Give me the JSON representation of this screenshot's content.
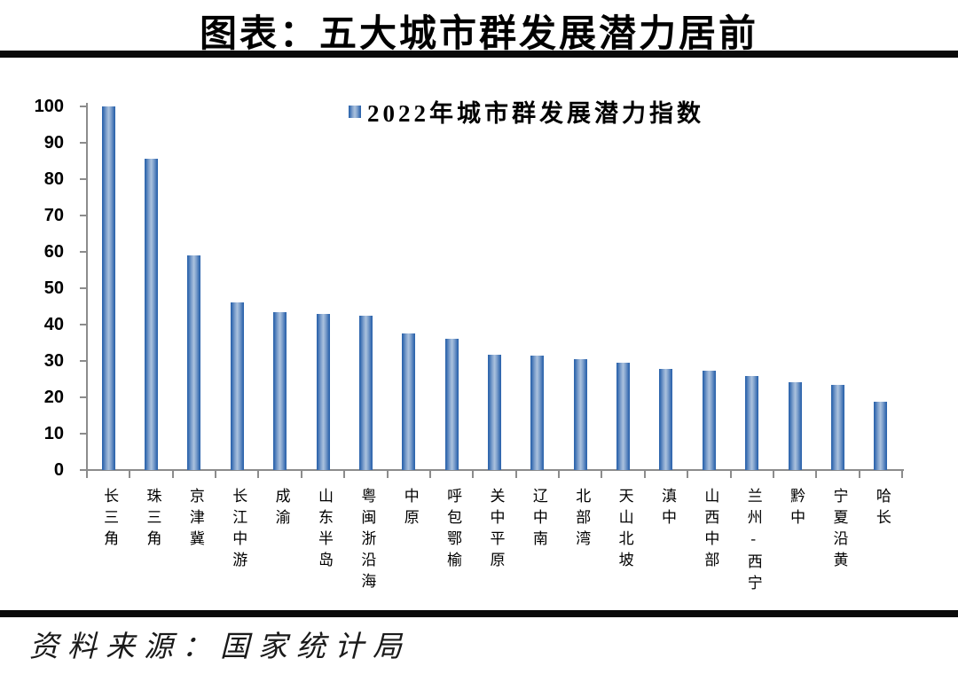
{
  "page": {
    "title": "图表：五大城市群发展潜力居前",
    "source": "资料来源：国家统计局"
  },
  "chart_data": {
    "type": "bar",
    "title": "图表：五大城市群发展潜力居前",
    "legend": [
      "2022年城市群发展潜力指数"
    ],
    "legend_position": "top-center",
    "categories": [
      "长三角",
      "珠三角",
      "京津冀",
      "长江中游",
      "成渝",
      "山东半岛",
      "粤闽浙沿海",
      "中原",
      "呼包鄂榆",
      "关中平原",
      "辽中南",
      "北部湾",
      "天山北坡",
      "滇中",
      "山西中部",
      "兰州-西宁",
      "黔中",
      "宁夏沿黄",
      "哈长"
    ],
    "values": [
      100,
      85.5,
      59,
      46,
      43.5,
      43,
      42.5,
      37.5,
      36,
      31.7,
      31.5,
      30.4,
      29.6,
      27.9,
      27.4,
      25.8,
      24.2,
      23.5,
      18.9
    ],
    "xlabel": "",
    "ylabel": "",
    "ylim": [
      0,
      100
    ],
    "ytick_step": 10,
    "grid": false,
    "bar_colors": {
      "edge": "#2f66ad",
      "midtone": "#7fa0cc",
      "light": "#abc2de"
    },
    "axis_color": "#8c8c8c"
  }
}
